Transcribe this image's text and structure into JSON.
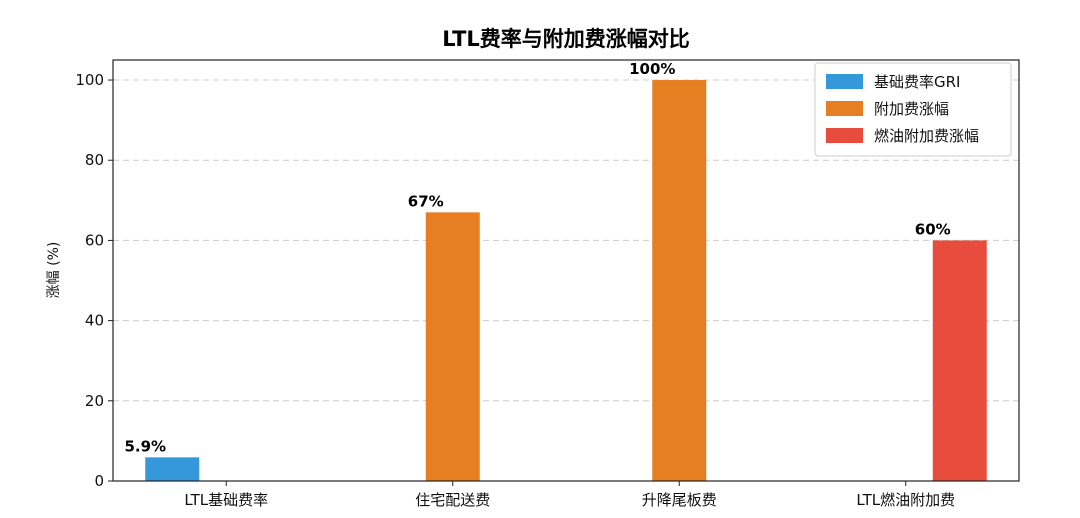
{
  "chart_data": {
    "type": "bar",
    "title": "LTL费率与附加费涨幅对比",
    "xlabel": "",
    "ylabel": "涨幅 (%)",
    "ylim": [
      0,
      105
    ],
    "yticks": [
      0,
      20,
      40,
      60,
      80,
      100
    ],
    "grid": "y-dashed",
    "legend_position": "top-right",
    "categories": [
      "LTL基础费率",
      "住宅配送费",
      "升降尾板费",
      "LTL燃油附加费"
    ],
    "series": [
      {
        "name": "基础费率GRI",
        "color": "#3498db",
        "values": [
          5.9,
          null,
          null,
          null
        ],
        "labels": [
          "5.9%",
          null,
          null,
          null
        ]
      },
      {
        "name": "附加费涨幅",
        "color": "#e67e22",
        "values": [
          null,
          67,
          100,
          null
        ],
        "labels": [
          null,
          "67%",
          "100%",
          null
        ]
      },
      {
        "name": "燃油附加费涨幅",
        "color": "#e74c3c",
        "values": [
          null,
          null,
          null,
          60
        ],
        "labels": [
          null,
          null,
          null,
          "60%"
        ]
      }
    ]
  }
}
